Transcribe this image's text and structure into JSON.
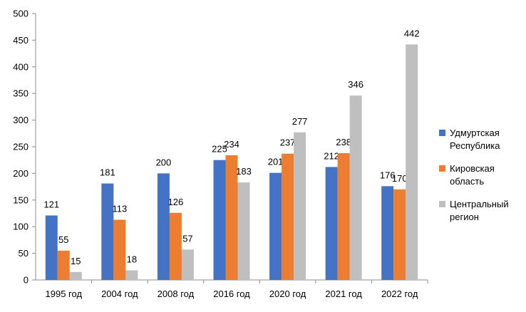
{
  "chart_data": {
    "type": "bar",
    "title": "",
    "xlabel": "",
    "ylabel": "",
    "ylim": [
      0,
      500
    ],
    "yticks": [
      0,
      50,
      100,
      150,
      200,
      250,
      300,
      350,
      400,
      450,
      500
    ],
    "grid": false,
    "legend_position": "right",
    "categories": [
      "1995 год",
      "2004 год",
      "2008 год",
      "2016 год",
      "2020 год",
      "2021 год",
      "2022 год"
    ],
    "series": [
      {
        "name": "Удмуртская Республика",
        "legend_lines": [
          "Удмуртская",
          "Республика"
        ],
        "color": "#4472C4",
        "values": [
          121,
          181,
          200,
          225,
          201,
          212,
          176
        ]
      },
      {
        "name": "Кировская область",
        "legend_lines": [
          "Кировская",
          "область"
        ],
        "color": "#ED7D31",
        "values": [
          55,
          113,
          126,
          234,
          237,
          238,
          170
        ]
      },
      {
        "name": "Центральный регион",
        "legend_lines": [
          "Центральный",
          "регион"
        ],
        "color": "#BFBFBF",
        "values": [
          15,
          18,
          57,
          183,
          277,
          346,
          442
        ]
      }
    ]
  }
}
